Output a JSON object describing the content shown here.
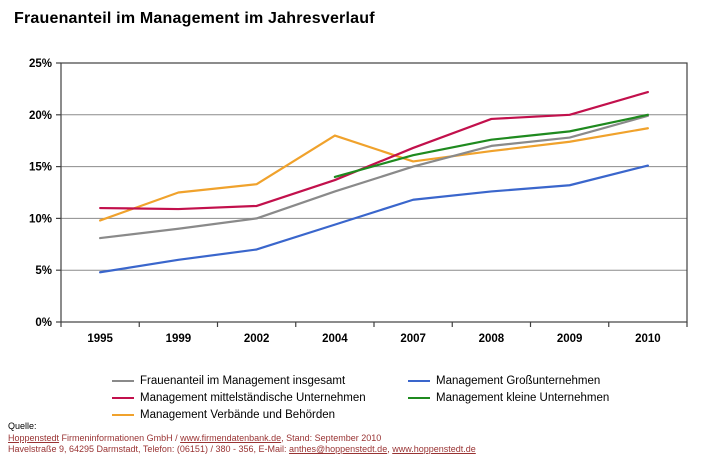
{
  "title": "Frauenanteil im Management im Jahresverlauf",
  "chart_data": {
    "type": "line",
    "title": "Frauenanteil im Management im Jahresverlauf",
    "categories": [
      "1995",
      "1999",
      "2002",
      "2004",
      "2007",
      "2008",
      "2009",
      "2010"
    ],
    "series": [
      {
        "name": "Frauenanteil im Management insgesamt",
        "color": "#8a8a8a",
        "values": [
          8.1,
          9.0,
          10.0,
          12.6,
          15.0,
          17.0,
          17.8,
          19.9
        ]
      },
      {
        "name": "Management Großunternehmen",
        "color": "#3a66cc",
        "values": [
          4.8,
          6.0,
          7.0,
          9.4,
          11.8,
          12.6,
          13.2,
          15.1
        ]
      },
      {
        "name": "Management mittelständische Unternehmen",
        "color": "#c2104c",
        "values": [
          11.0,
          10.9,
          11.2,
          13.7,
          16.8,
          19.6,
          20.0,
          22.2
        ]
      },
      {
        "name": "Management kleine Unternehmen",
        "color": "#1f8a1f",
        "values": [
          null,
          null,
          null,
          14.0,
          16.1,
          17.6,
          18.4,
          20.0
        ]
      },
      {
        "name": "Management Verbände und Behörden",
        "color": "#f0a22c",
        "values": [
          9.8,
          12.5,
          13.3,
          18.0,
          15.5,
          16.5,
          17.4,
          18.7
        ]
      }
    ],
    "xlabel": "",
    "ylabel": "",
    "ylim": [
      0,
      25
    ],
    "ytick_labels": [
      "0%",
      "5%",
      "10%",
      "15%",
      "20%",
      "25%"
    ],
    "grid": true,
    "legend_position": "bottom"
  },
  "legend": {
    "items": [
      {
        "label": "Frauenanteil im Management insgesamt",
        "color": "#8a8a8a"
      },
      {
        "label": "Management Großunternehmen",
        "color": "#3a66cc"
      },
      {
        "label": "Management mittelständische Unternehmen",
        "color": "#c2104c"
      },
      {
        "label": "Management kleine Unternehmen",
        "color": "#1f8a1f"
      },
      {
        "label": "Management Verbände und Behörden",
        "color": "#f0a22c"
      }
    ]
  },
  "footer": {
    "source_label": "Quelle:",
    "line1_segments": [
      {
        "text": "Hoppenstedt",
        "link": true
      },
      {
        "text": " Firmeninformationen GmbH / ",
        "link": false
      },
      {
        "text": "www.firmendatenbank.de",
        "link": true
      },
      {
        "text": ", Stand: September 2010",
        "link": false
      }
    ],
    "line2_segments": [
      {
        "text": "Havelstraße 9, 64295 Darmstadt, Telefon: (06151) / 380 - 356, E-Mail: ",
        "link": false
      },
      {
        "text": "anthes@hoppenstedt.de",
        "link": true
      },
      {
        "text": ", ",
        "link": false
      },
      {
        "text": "www.hoppenstedt.de",
        "link": true
      }
    ]
  },
  "colors": {
    "axis": "#404040",
    "grid": "#8c8c8c",
    "footer_text": "#993333"
  }
}
